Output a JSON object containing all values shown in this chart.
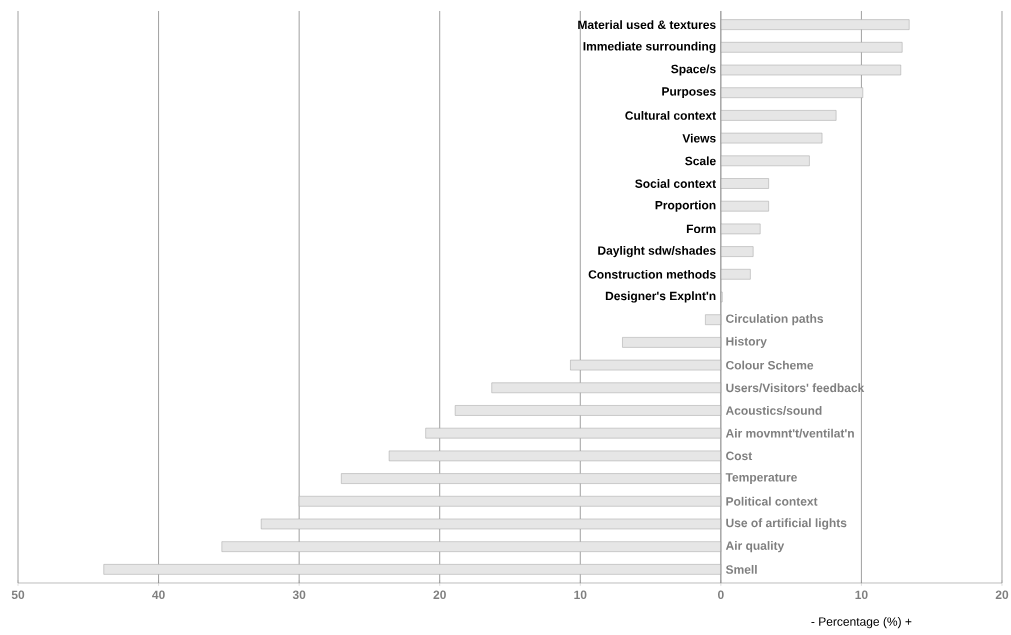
{
  "chart_data": {
    "type": "bar",
    "orientation": "horizontal",
    "xlabel": "- Percentage (%) +",
    "categories": [
      "Material used & textures",
      "Immediate surrounding",
      "Space/s",
      "Purposes",
      "Cultural context",
      "Views",
      "Scale",
      "Social context",
      "Proportion",
      "Form",
      "Daylight sdw/shades",
      "Construction methods",
      "Designer's Explnt'n",
      "Circulation paths",
      "History",
      "Colour Scheme",
      "Users/Visitors' feedback",
      "Acoustics/sound",
      "Air movmnt't/ventilat'n",
      "Cost",
      "Temperature",
      "Political context",
      "Use of artificial lights",
      "Air quality",
      "Smell"
    ],
    "values": [
      13.4,
      12.9,
      12.8,
      10.1,
      8.2,
      7.2,
      6.3,
      3.4,
      3.4,
      2.8,
      2.3,
      2.1,
      0.1,
      -1.1,
      -7.0,
      -10.7,
      -16.3,
      -18.9,
      -21.0,
      -23.6,
      -27.0,
      -30.0,
      -32.7,
      -35.5,
      -43.9
    ],
    "color": "#e6e6e6",
    "xlim": [
      -50,
      20
    ],
    "xticks": [
      {
        "value": -50,
        "label": "50"
      },
      {
        "value": -40,
        "label": "40"
      },
      {
        "value": -30,
        "label": "30"
      },
      {
        "value": -20,
        "label": "20"
      },
      {
        "value": -10,
        "label": "10"
      },
      0,
      10,
      20
    ],
    "grid": "x"
  }
}
